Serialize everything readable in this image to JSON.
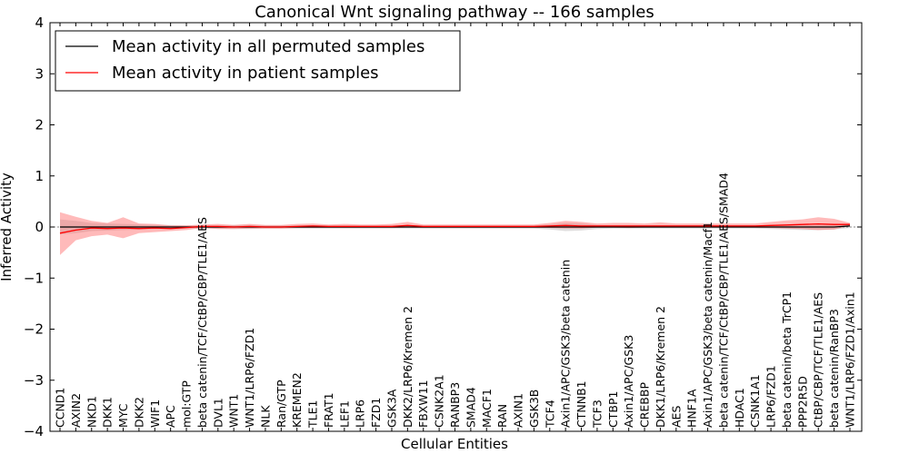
{
  "chart_data": {
    "type": "line",
    "title": "Canonical Wnt signaling pathway -- 166 samples",
    "xlabel": "Cellular Entities",
    "ylabel": "Inferred Activity",
    "ylim": [
      -4,
      4
    ],
    "yticks": [
      -4,
      -3,
      -2,
      -1,
      0,
      1,
      2,
      3,
      4
    ],
    "ytick_labels": [
      "−4",
      "−3",
      "−2",
      "−1",
      "0",
      "1",
      "2",
      "3",
      "4"
    ],
    "legend_position": "top-left",
    "categories": [
      "CCND1",
      "AXIN2",
      "NKD1",
      "DKK1",
      "MYC",
      "DKK2",
      "WIF1",
      "APC",
      "mol:GTP",
      "beta catenin/TCF/CtBP/CBP/TLE1/AES",
      "DVL1",
      "WNT1",
      "WNT1/LRP6/FZD1",
      "NLK",
      "Ran/GTP",
      "KREMEN2",
      "TLE1",
      "FRAT1",
      "LEF1",
      "LRP6",
      "FZD1",
      "GSK3A",
      "DKK2/LRP6/Kremen 2",
      "FBXW11",
      "CSNK2A1",
      "RANBP3",
      "SMAD4",
      "MACF1",
      "RAN",
      "AXIN1",
      "GSK3B",
      "TCF4",
      "Axin1/APC/GSK3/beta catenin",
      "CTNNB1",
      "TCF3",
      "CTBP1",
      "Axin1/APC/GSK3",
      "CREBBP",
      "DKK1/LRP6/Kremen 2",
      "AES",
      "HNF1A",
      "Axin1/APC/GSK3/beta catenin/Macf1",
      "beta catenin/TCF/CtBP/CBP/TLE1/AES/SMAD4",
      "HDAC1",
      "CSNK1A1",
      "LRP6/FZD1",
      "beta catenin/beta TrCP1",
      "PPP2R5D",
      "CtBP/CBP/TCF/TLE1/AES",
      "beta catenin/RanBP3",
      "WNT1/LRP6/FZD1/Axin1"
    ],
    "series": [
      {
        "name": "Mean activity in all permuted samples",
        "color": "#000000",
        "band_color": "#b0b0b0",
        "values": [
          0,
          0,
          0,
          0,
          0,
          0,
          0,
          0,
          0,
          0,
          0,
          0,
          0,
          0,
          0,
          0,
          0,
          0,
          0,
          0,
          0,
          0,
          0,
          0,
          0,
          0,
          0,
          0,
          0,
          0,
          0,
          0,
          0,
          0,
          0,
          0,
          0,
          0,
          0,
          0,
          0,
          0,
          0,
          0,
          0,
          0,
          0,
          0,
          0,
          0,
          0.02
        ],
        "lower": [
          -0.15,
          -0.12,
          -0.08,
          -0.07,
          -0.06,
          -0.05,
          -0.04,
          -0.04,
          -0.03,
          -0.03,
          -0.03,
          -0.04,
          -0.04,
          -0.03,
          -0.03,
          -0.03,
          -0.03,
          -0.03,
          -0.03,
          -0.03,
          -0.03,
          -0.03,
          -0.03,
          -0.03,
          -0.03,
          -0.03,
          -0.03,
          -0.03,
          -0.03,
          -0.03,
          -0.03,
          -0.05,
          -0.08,
          -0.07,
          -0.04,
          -0.03,
          -0.03,
          -0.03,
          -0.03,
          -0.03,
          -0.03,
          -0.03,
          -0.03,
          -0.03,
          -0.03,
          -0.04,
          -0.05,
          -0.06,
          -0.06,
          -0.05,
          -0.02
        ],
        "upper": [
          0.15,
          0.12,
          0.08,
          0.07,
          0.06,
          0.05,
          0.04,
          0.04,
          0.03,
          0.03,
          0.03,
          0.04,
          0.04,
          0.03,
          0.03,
          0.03,
          0.03,
          0.03,
          0.03,
          0.03,
          0.03,
          0.03,
          0.03,
          0.03,
          0.03,
          0.03,
          0.03,
          0.03,
          0.03,
          0.03,
          0.03,
          0.05,
          0.08,
          0.07,
          0.04,
          0.03,
          0.03,
          0.03,
          0.03,
          0.03,
          0.03,
          0.03,
          0.03,
          0.03,
          0.03,
          0.04,
          0.05,
          0.06,
          0.06,
          0.05,
          0.05
        ]
      },
      {
        "name": "Mean activity in patient samples",
        "color": "#ff0000",
        "band_color": "#ff6666",
        "values": [
          -0.12,
          -0.06,
          -0.02,
          -0.03,
          -0.02,
          -0.03,
          -0.02,
          -0.03,
          -0.01,
          0.01,
          0.01,
          0,
          0.01,
          0,
          0,
          0.01,
          0.02,
          0.01,
          0.01,
          0.01,
          0.01,
          0.01,
          0.03,
          0.01,
          0.01,
          0.01,
          0.01,
          0.01,
          0.01,
          0.01,
          0.01,
          0.02,
          0.03,
          0.02,
          0.02,
          0.02,
          0.02,
          0.02,
          0.02,
          0.02,
          0.02,
          0.02,
          0.02,
          0.02,
          0.02,
          0.03,
          0.04,
          0.05,
          0.06,
          0.05,
          0.05
        ],
        "lower": [
          -0.55,
          -0.26,
          -0.18,
          -0.15,
          -0.22,
          -0.12,
          -0.1,
          -0.08,
          -0.06,
          -0.02,
          -0.04,
          -0.04,
          -0.03,
          -0.03,
          -0.03,
          -0.02,
          -0.02,
          -0.02,
          -0.02,
          -0.02,
          -0.02,
          -0.02,
          -0.01,
          -0.02,
          -0.02,
          -0.02,
          -0.02,
          -0.02,
          -0.02,
          -0.02,
          -0.02,
          -0.02,
          -0.03,
          -0.03,
          -0.01,
          -0.01,
          -0.02,
          -0.01,
          -0.01,
          -0.01,
          -0.01,
          -0.01,
          -0.01,
          -0.01,
          -0.01,
          -0.02,
          -0.03,
          -0.04,
          -0.06,
          -0.05,
          0.02
        ],
        "upper": [
          0.29,
          0.2,
          0.12,
          0.08,
          0.19,
          0.07,
          0.06,
          0.03,
          0.03,
          0.05,
          0.06,
          0.04,
          0.06,
          0.04,
          0.04,
          0.06,
          0.07,
          0.05,
          0.06,
          0.05,
          0.05,
          0.06,
          0.1,
          0.05,
          0.05,
          0.05,
          0.05,
          0.05,
          0.05,
          0.05,
          0.05,
          0.08,
          0.12,
          0.1,
          0.07,
          0.08,
          0.08,
          0.07,
          0.09,
          0.07,
          0.07,
          0.07,
          0.07,
          0.07,
          0.07,
          0.1,
          0.13,
          0.15,
          0.19,
          0.16,
          0.08
        ]
      }
    ]
  }
}
